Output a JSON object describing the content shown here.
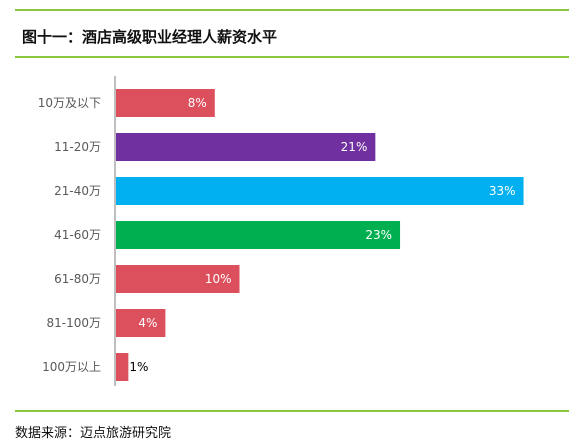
{
  "title": "图十一：酒店高级职业经理人薪资水平",
  "source": "数据来源：迈点旅游研究院",
  "chart_data": {
    "type": "bar",
    "orientation": "horizontal",
    "categories": [
      "10万及以下",
      "11-20万",
      "21-40万",
      "41-60万",
      "61-80万",
      "81-100万",
      "100万以上"
    ],
    "values": [
      8,
      21,
      33,
      23,
      10,
      4,
      1
    ],
    "labels": [
      "8%",
      "21%",
      "33%",
      "23%",
      "10%",
      "4%",
      "1%"
    ],
    "colors": [
      "#dc4f5c",
      "#7030a0",
      "#00b0f0",
      "#00b050",
      "#dc4f5c",
      "#dc4f5c",
      "#dc4f5c"
    ],
    "xlim": [
      0,
      36
    ],
    "grid": false
  }
}
